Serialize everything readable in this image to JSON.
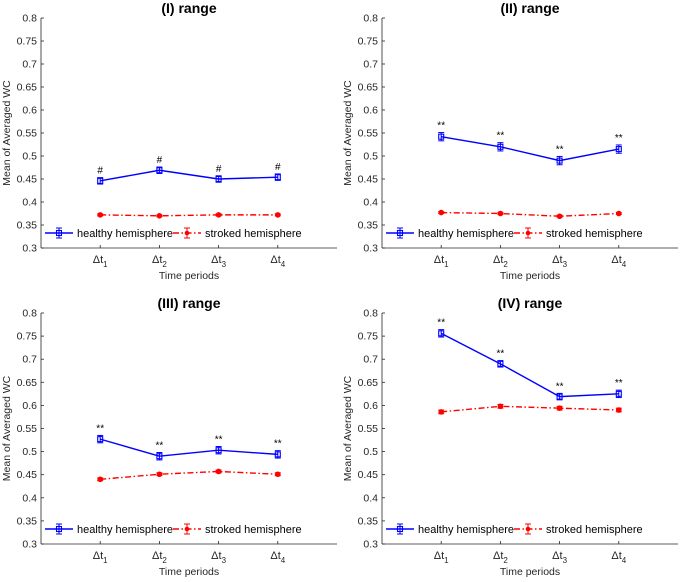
{
  "colors": {
    "healthy": "#0000ff",
    "stroked": "#ff0000",
    "axis": "#262626"
  },
  "chart_data": [
    {
      "type": "line",
      "title": "(I) range",
      "xlabel": "Time periods",
      "ylabel": "Mean of Averaged WC",
      "ylim": [
        0.3,
        0.8
      ],
      "yticks": [
        "0.3",
        "0.35",
        "0.4",
        "0.45",
        "0.5",
        "0.55",
        "0.6",
        "0.65",
        "0.7",
        "0.75",
        "0.8"
      ],
      "categories": [
        {
          "base": "Δt",
          "sub": "1"
        },
        {
          "base": "Δt",
          "sub": "2"
        },
        {
          "base": "Δt",
          "sub": "3"
        },
        {
          "base": "Δt",
          "sub": "4"
        }
      ],
      "series": [
        {
          "name": "healthy hemisphere",
          "color": "#0000ff",
          "style": "solid",
          "marker": "square",
          "values": [
            0.446,
            0.469,
            0.45,
            0.454
          ],
          "errors": [
            0.007,
            0.007,
            0.007,
            0.007
          ]
        },
        {
          "name": "stroked hemisphere",
          "color": "#ff0000",
          "style": "dashdot",
          "marker": "circle",
          "values": [
            0.372,
            0.37,
            0.372,
            0.372
          ],
          "errors": [
            0.002,
            0.002,
            0.002,
            0.002
          ]
        }
      ],
      "annotations": [
        "#",
        "#",
        "#",
        "#"
      ],
      "legend": "bottom"
    },
    {
      "type": "line",
      "title": "(II) range",
      "xlabel": "Time periods",
      "ylabel": "Mean of Averaged WC",
      "ylim": [
        0.3,
        0.8
      ],
      "yticks": [
        "0.3",
        "0.35",
        "0.4",
        "0.45",
        "0.5",
        "0.55",
        "0.6",
        "0.65",
        "0.7",
        "0.75",
        "0.8"
      ],
      "categories": [
        {
          "base": "Δt",
          "sub": "1"
        },
        {
          "base": "Δt",
          "sub": "2"
        },
        {
          "base": "Δt",
          "sub": "3"
        },
        {
          "base": "Δt",
          "sub": "4"
        }
      ],
      "series": [
        {
          "name": "healthy hemisphere",
          "color": "#0000ff",
          "style": "solid",
          "marker": "square",
          "values": [
            0.542,
            0.52,
            0.49,
            0.515
          ],
          "errors": [
            0.009,
            0.009,
            0.009,
            0.009
          ]
        },
        {
          "name": "stroked hemisphere",
          "color": "#ff0000",
          "style": "dashdot",
          "marker": "circle",
          "values": [
            0.377,
            0.375,
            0.369,
            0.375
          ],
          "errors": [
            0.002,
            0.002,
            0.002,
            0.002
          ]
        }
      ],
      "annotations": [
        "**",
        "**",
        "**",
        "**"
      ],
      "legend": "bottom"
    },
    {
      "type": "line",
      "title": "(III) range",
      "xlabel": "Time periods",
      "ylabel": "Mean of Averaged WC",
      "ylim": [
        0.3,
        0.8
      ],
      "yticks": [
        "0.3",
        "0.35",
        "0.4",
        "0.45",
        "0.5",
        "0.55",
        "0.6",
        "0.65",
        "0.7",
        "0.75",
        "0.8"
      ],
      "categories": [
        {
          "base": "Δt",
          "sub": "1"
        },
        {
          "base": "Δt",
          "sub": "2"
        },
        {
          "base": "Δt",
          "sub": "3"
        },
        {
          "base": "Δt",
          "sub": "4"
        }
      ],
      "series": [
        {
          "name": "healthy hemisphere",
          "color": "#0000ff",
          "style": "solid",
          "marker": "square",
          "values": [
            0.527,
            0.49,
            0.503,
            0.494
          ],
          "errors": [
            0.008,
            0.008,
            0.008,
            0.008
          ]
        },
        {
          "name": "stroked hemisphere",
          "color": "#ff0000",
          "style": "dashdot",
          "marker": "circle",
          "values": [
            0.44,
            0.451,
            0.457,
            0.451
          ],
          "errors": [
            0.003,
            0.003,
            0.003,
            0.003
          ]
        }
      ],
      "annotations": [
        "**",
        "**",
        "**",
        "**"
      ],
      "legend": "bottom"
    },
    {
      "type": "line",
      "title": "(IV) range",
      "xlabel": "Time periods",
      "ylabel": "Mean of Averaged WC",
      "ylim": [
        0.3,
        0.8
      ],
      "yticks": [
        "0.3",
        "0.35",
        "0.4",
        "0.45",
        "0.5",
        "0.55",
        "0.6",
        "0.65",
        "0.7",
        "0.75",
        "0.8"
      ],
      "categories": [
        {
          "base": "Δt",
          "sub": "1"
        },
        {
          "base": "Δt",
          "sub": "2"
        },
        {
          "base": "Δt",
          "sub": "3"
        },
        {
          "base": "Δt",
          "sub": "4"
        }
      ],
      "series": [
        {
          "name": "healthy hemisphere",
          "color": "#0000ff",
          "style": "solid",
          "marker": "square",
          "values": [
            0.756,
            0.69,
            0.619,
            0.625
          ],
          "errors": [
            0.008,
            0.007,
            0.007,
            0.008
          ]
        },
        {
          "name": "stroked hemisphere",
          "color": "#ff0000",
          "style": "dashdot",
          "marker": "circle",
          "values": [
            0.586,
            0.598,
            0.594,
            0.59
          ],
          "errors": [
            0.004,
            0.004,
            0.004,
            0.004
          ]
        }
      ],
      "annotations": [
        "**",
        "**",
        "**",
        "**"
      ],
      "legend": "bottom"
    }
  ]
}
